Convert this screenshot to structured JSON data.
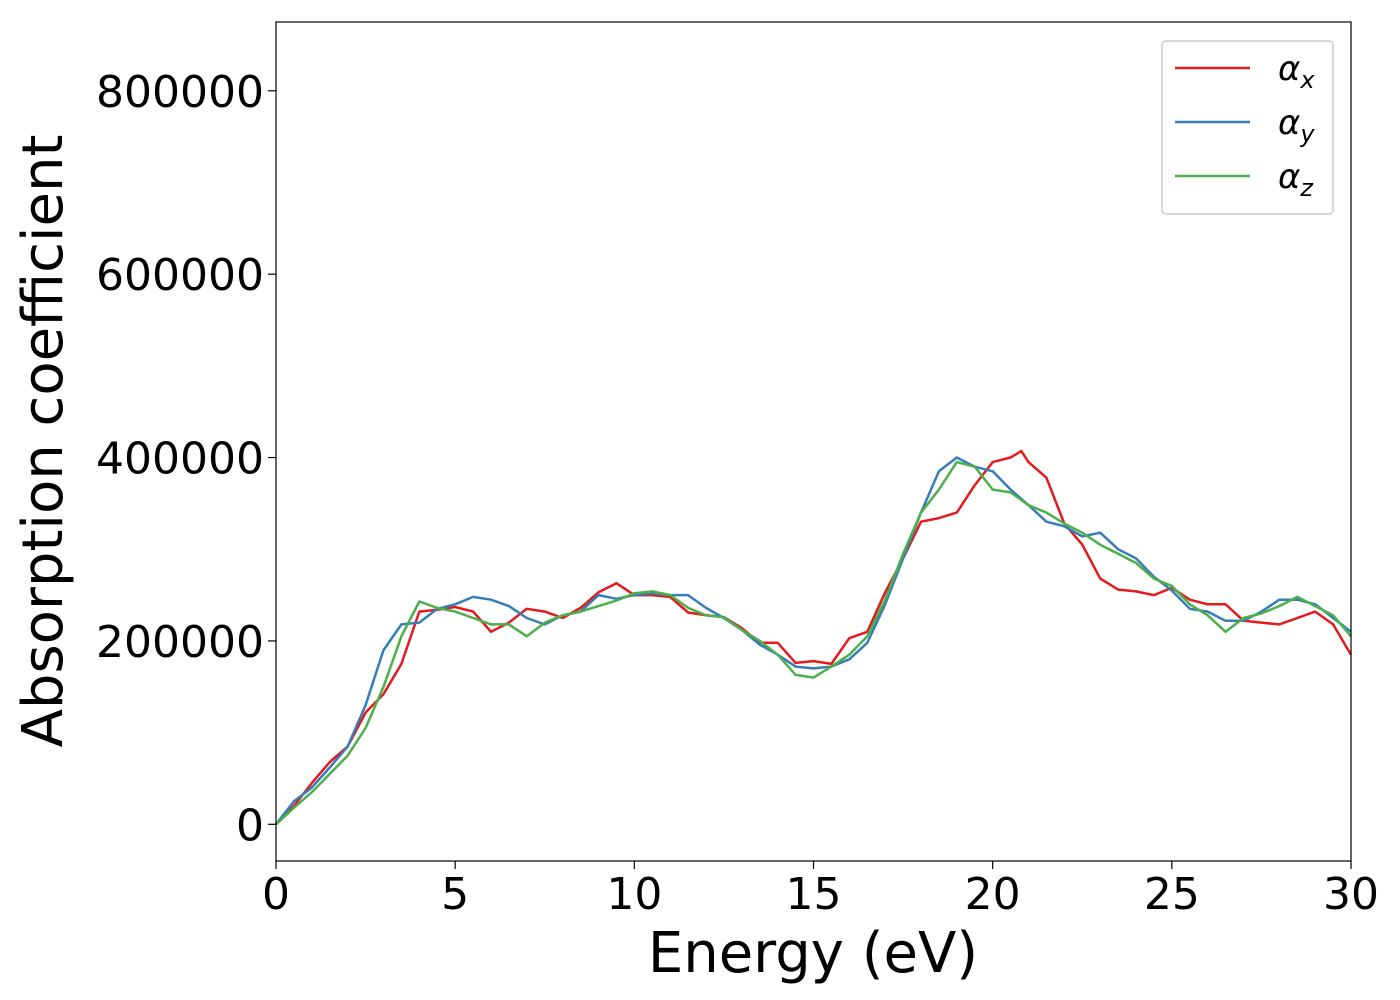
{
  "chart_data": {
    "type": "line",
    "title": "",
    "xlabel": "Energy (eV)",
    "ylabel": "Absorption coefficient",
    "xlim": [
      0,
      30
    ],
    "ylim": [
      -40000,
      875000
    ],
    "xticks": [
      0,
      5,
      10,
      15,
      20,
      25,
      30
    ],
    "xtick_labels": [
      "0",
      "5",
      "10",
      "15",
      "20",
      "25",
      "30"
    ],
    "yticks": [
      0,
      200000,
      400000,
      600000,
      800000
    ],
    "ytick_labels": [
      "0",
      "200000",
      "400000",
      "600000",
      "800000"
    ],
    "grid": false,
    "legend_position": "top-right",
    "series": [
      {
        "name": "α_x",
        "label_base": "α",
        "label_sub": "x",
        "color": "#e41a1c",
        "x": [
          0,
          0.5,
          1,
          1.5,
          2,
          2.5,
          3,
          3.5,
          4,
          4.5,
          5,
          5.5,
          6,
          6.5,
          7,
          7.5,
          8,
          8.5,
          9,
          9.5,
          10,
          10.5,
          11,
          11.5,
          12,
          12.5,
          13,
          13.5,
          14,
          14.5,
          15,
          15.5,
          16,
          16.5,
          17,
          17.5,
          18,
          18.5,
          19,
          19.5,
          20,
          20.5,
          20.8,
          21,
          21.5,
          22,
          22.5,
          23,
          23.5,
          24,
          24.5,
          25,
          25.5,
          26,
          26.5,
          27,
          27.5,
          28,
          28.5,
          29,
          29.5,
          30
        ],
        "y": [
          0,
          20000,
          45000,
          68000,
          85000,
          122000,
          142000,
          175000,
          232000,
          234000,
          237000,
          232000,
          210000,
          220000,
          235000,
          232000,
          225000,
          236000,
          253000,
          263000,
          250000,
          250000,
          248000,
          231000,
          228000,
          226000,
          214000,
          198000,
          198000,
          176000,
          178000,
          175000,
          203000,
          210000,
          253000,
          290000,
          330000,
          334000,
          340000,
          370000,
          395000,
          400000,
          407000,
          395000,
          378000,
          328000,
          305000,
          268000,
          256000,
          254000,
          250000,
          258000,
          245000,
          240000,
          240000,
          222000,
          220000,
          218000,
          225000,
          232000,
          218000,
          185000
        ]
      },
      {
        "name": "α_y",
        "label_base": "α",
        "label_sub": "y",
        "color": "#377eb8",
        "x": [
          0,
          0.5,
          1,
          1.5,
          2,
          2.5,
          3,
          3.5,
          4,
          4.5,
          5,
          5.5,
          6,
          6.5,
          7,
          7.5,
          8,
          8.5,
          9,
          9.5,
          10,
          10.5,
          11,
          11.5,
          12,
          12.5,
          13,
          13.5,
          14,
          14.5,
          15,
          15.5,
          16,
          16.5,
          17,
          17.5,
          18,
          18.5,
          19,
          19.5,
          20,
          20.5,
          21,
          21.5,
          22,
          22.5,
          23,
          23.5,
          24,
          24.5,
          25,
          25.5,
          26,
          26.5,
          27,
          27.5,
          28,
          28.5,
          29,
          29.5,
          30
        ],
        "y": [
          0,
          25000,
          40000,
          62000,
          85000,
          130000,
          190000,
          218000,
          220000,
          235000,
          240000,
          248000,
          245000,
          238000,
          225000,
          218000,
          228000,
          232000,
          250000,
          246000,
          250000,
          252000,
          250000,
          250000,
          236000,
          225000,
          212000,
          196000,
          185000,
          172000,
          170000,
          172000,
          180000,
          198000,
          240000,
          290000,
          340000,
          385000,
          400000,
          390000,
          385000,
          365000,
          348000,
          330000,
          325000,
          314000,
          318000,
          300000,
          290000,
          270000,
          255000,
          235000,
          232000,
          222000,
          222000,
          232000,
          245000,
          245000,
          240000,
          225000,
          210000
        ]
      },
      {
        "name": "α_z",
        "label_base": "α",
        "label_sub": "z",
        "color": "#4daf4a",
        "x": [
          0,
          0.5,
          1,
          1.5,
          2,
          2.5,
          3,
          3.5,
          4,
          4.5,
          5,
          5.5,
          6,
          6.5,
          7,
          7.5,
          8,
          8.5,
          9,
          9.5,
          10,
          10.5,
          11,
          11.5,
          12,
          12.5,
          13,
          13.5,
          14,
          14.5,
          15,
          15.5,
          16,
          16.5,
          17,
          17.5,
          18,
          18.5,
          19,
          19.5,
          20,
          20.5,
          21,
          21.5,
          22,
          22.5,
          23,
          23.5,
          24,
          24.5,
          25,
          25.5,
          26,
          26.5,
          27,
          27.5,
          28,
          28.5,
          29,
          29.5,
          30
        ],
        "y": [
          0,
          18000,
          35000,
          55000,
          75000,
          105000,
          150000,
          205000,
          243000,
          236000,
          232000,
          225000,
          218000,
          218000,
          205000,
          220000,
          228000,
          232000,
          238000,
          244000,
          252000,
          254000,
          250000,
          236000,
          228000,
          226000,
          212000,
          200000,
          185000,
          163000,
          160000,
          172000,
          185000,
          205000,
          245000,
          295000,
          340000,
          365000,
          395000,
          390000,
          365000,
          362000,
          348000,
          340000,
          328000,
          318000,
          305000,
          295000,
          285000,
          268000,
          260000,
          240000,
          228000,
          210000,
          225000,
          230000,
          238000,
          248000,
          238000,
          228000,
          205000
        ]
      }
    ]
  }
}
